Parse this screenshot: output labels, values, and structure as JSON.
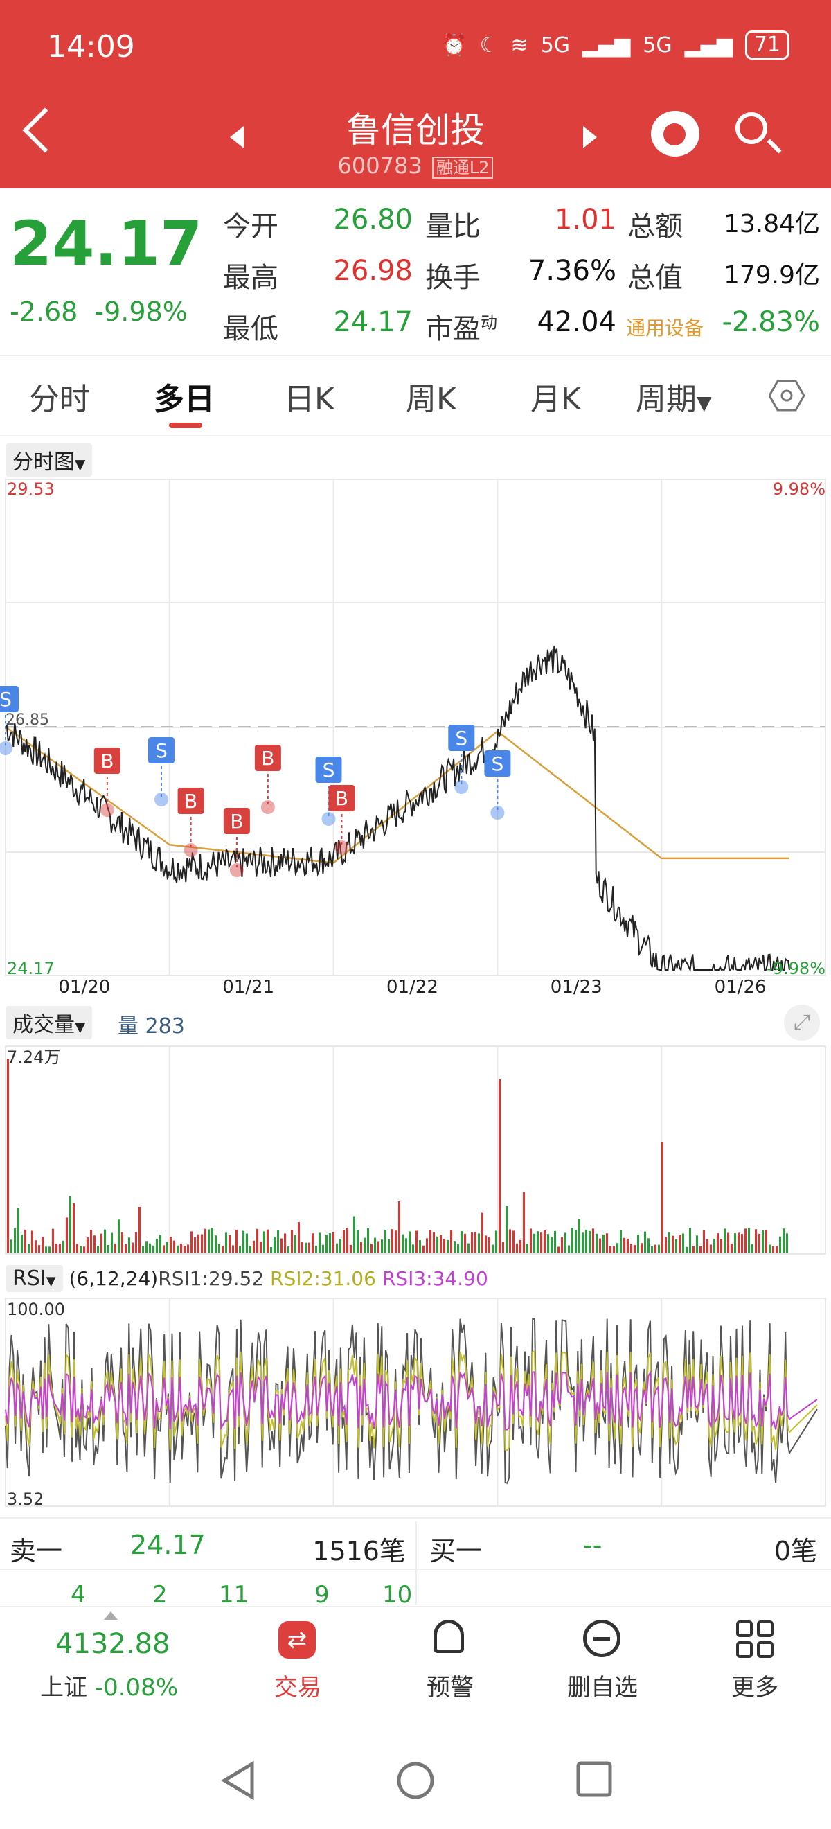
{
  "status_bar": {
    "time": "14:09",
    "network1": "5G",
    "network2": "5G",
    "battery": "71"
  },
  "header": {
    "title": "鲁信创投",
    "code": "600783",
    "badges": "融通L2"
  },
  "quote": {
    "price": "24.17",
    "change": "-2.68",
    "change_pct": "-9.98%",
    "rows": [
      [
        {
          "label": "今开",
          "value": "26.80",
          "color": "green"
        },
        {
          "label": "量比",
          "value": "1.01",
          "color": "red"
        },
        {
          "label": "总额",
          "value": "13.84亿",
          "color": "black"
        }
      ],
      [
        {
          "label": "最高",
          "value": "26.98",
          "color": "red"
        },
        {
          "label": "换手",
          "value": "7.36%",
          "color": "black"
        },
        {
          "label": "总值",
          "value": "179.9亿",
          "color": "black"
        }
      ],
      [
        {
          "label": "最低",
          "value": "24.17",
          "color": "green"
        },
        {
          "label": "市盈",
          "sup": "动",
          "value": "42.04",
          "color": "black"
        },
        {
          "label": "通用设备",
          "value": "-2.83%",
          "color": "green"
        }
      ]
    ]
  },
  "tabs": [
    {
      "label": "分时"
    },
    {
      "label": "多日",
      "active": true
    },
    {
      "label": "日K"
    },
    {
      "label": "周K"
    },
    {
      "label": "月K"
    },
    {
      "label": "周期"
    }
  ],
  "price_chart": {
    "selector": "分时图",
    "y_max": "29.53",
    "y_max_pct": "9.98%",
    "y_min": "24.17",
    "y_min_pct": "-9.98%",
    "prev_close": "26.85",
    "dates": [
      "01/20",
      "01/21",
      "01/22",
      "01/23",
      "01/26"
    ],
    "signals": [
      {
        "type": "S",
        "day": 0,
        "t": 0.0
      },
      {
        "type": "B",
        "day": 0,
        "t": 0.62
      },
      {
        "type": "S",
        "day": 0,
        "t": 0.95
      },
      {
        "type": "B",
        "day": 1,
        "t": 0.13
      },
      {
        "type": "B",
        "day": 1,
        "t": 0.41
      },
      {
        "type": "B",
        "day": 1,
        "t": 0.6
      },
      {
        "type": "S",
        "day": 1,
        "t": 0.97
      },
      {
        "type": "B",
        "day": 2,
        "t": 0.05
      },
      {
        "type": "S",
        "day": 2,
        "t": 0.78
      },
      {
        "type": "S",
        "day": 3,
        "t": 0.0
      }
    ],
    "signal_colors": {
      "B": "#d8413d",
      "S": "#4a86e8"
    }
  },
  "volume_chart": {
    "selector": "成交量",
    "label": "量",
    "value": "283",
    "max": "7.24万"
  },
  "rsi_chart": {
    "selector": "RSI",
    "params": "(6,12,24)",
    "rsi1": "RSI1:29.52",
    "rsi2": "RSI2:31.06",
    "rsi3": "RSI3:34.90",
    "max": "100.00",
    "min": "3.52",
    "colors": {
      "rsi1": "#555555",
      "rsi2": "#c2c02c",
      "rsi3": "#c43fd6"
    }
  },
  "order_book": {
    "sell_label": "卖一",
    "sell_price": "24.17",
    "sell_count": "1516笔",
    "buy_label": "买一",
    "buy_price": "--",
    "buy_count": "0笔",
    "tick_values": [
      "4",
      "2",
      "11",
      "9",
      "10"
    ]
  },
  "bottom_nav": {
    "index_value": "4132.88",
    "index_name": "上证",
    "index_change": "-0.08%",
    "items": [
      {
        "label": "交易"
      },
      {
        "label": "预警"
      },
      {
        "label": "删自选"
      },
      {
        "label": "更多"
      }
    ]
  },
  "chart_data": {
    "type": "line",
    "x": [
      "01/20",
      "01/21",
      "01/22",
      "01/23",
      "01/26"
    ],
    "series": [
      {
        "values": [
          26.85,
          25.3,
          25.4,
          26.7,
          24.17
        ]
      },
      {
        "values": [
          26.85,
          25.55,
          25.35,
          26.8,
          25.4
        ]
      }
    ],
    "ylim": [
      24.17,
      29.53
    ],
    "reference": 26.85
  }
}
